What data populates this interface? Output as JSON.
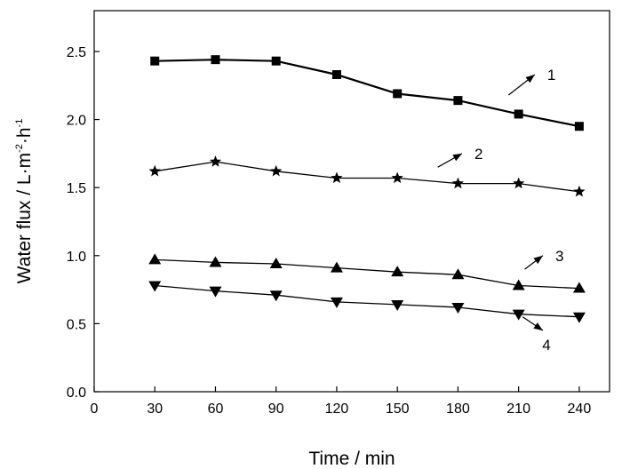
{
  "chart_data": {
    "type": "line",
    "title": "",
    "xlabel": "Time / min",
    "ylabel": {
      "prefix": "Water flux / L·m",
      "exp1": "-2",
      "mid": "·h",
      "exp2": "-1"
    },
    "xlim": [
      0,
      255
    ],
    "ylim": [
      0,
      2.8
    ],
    "xticks": [
      0,
      30,
      60,
      90,
      120,
      150,
      180,
      210,
      240
    ],
    "xtick_labels": [
      "0",
      "30",
      "60",
      "90",
      "120",
      "150",
      "180",
      "210",
      "240"
    ],
    "yticks": [
      0,
      0.5,
      1.0,
      1.5,
      2.0,
      2.5
    ],
    "ytick_labels": [
      "0.0",
      "0.5",
      "1.0",
      "1.5",
      "2.0",
      "2.5"
    ],
    "grid": false,
    "x": [
      30,
      60,
      90,
      120,
      150,
      180,
      210,
      240
    ],
    "series": [
      {
        "label": "1",
        "marker": "square",
        "values": [
          2.43,
          2.44,
          2.43,
          2.33,
          2.19,
          2.14,
          2.04,
          1.95
        ]
      },
      {
        "label": "2",
        "marker": "star",
        "values": [
          1.62,
          1.69,
          1.62,
          1.57,
          1.57,
          1.53,
          1.53,
          1.47
        ]
      },
      {
        "label": "3",
        "marker": "triangle-up",
        "values": [
          0.97,
          0.95,
          0.94,
          0.91,
          0.88,
          0.86,
          0.78,
          0.76
        ]
      },
      {
        "label": "4",
        "marker": "triangle-down",
        "values": [
          0.78,
          0.74,
          0.71,
          0.66,
          0.64,
          0.62,
          0.57,
          0.55
        ]
      }
    ],
    "annotations": [
      {
        "text": "1",
        "series": 0,
        "from": [
          205,
          2.18
        ],
        "to": [
          218,
          2.33
        ]
      },
      {
        "text": "2",
        "series": 1,
        "from": [
          170,
          1.65
        ],
        "to": [
          182,
          1.75
        ]
      },
      {
        "text": "3",
        "series": 2,
        "from": [
          213,
          0.9
        ],
        "to": [
          222,
          1.0
        ]
      },
      {
        "text": "4",
        "series": 3,
        "from": [
          212,
          0.55
        ],
        "to": [
          222,
          0.45
        ]
      }
    ],
    "color": "#000000"
  }
}
